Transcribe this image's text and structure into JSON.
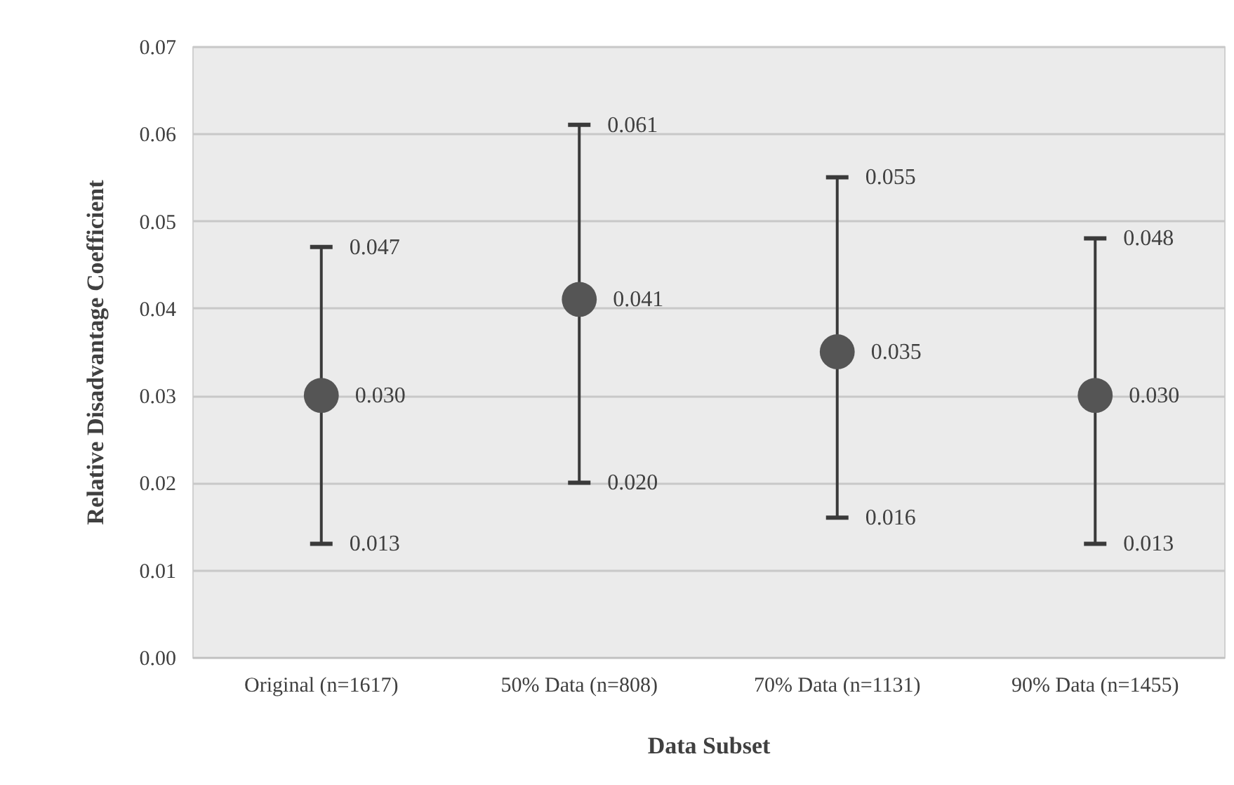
{
  "chart_data": {
    "type": "scatter",
    "xlabel": "Data Subset",
    "ylabel": "Relative Disadvantage Coefficient",
    "categories": [
      "Original (n=1617)",
      "50% Data (n=808)",
      "70% Data (n=1131)",
      "90% Data (n=1455)"
    ],
    "values": [
      0.03,
      0.041,
      0.035,
      0.03
    ],
    "value_labels": [
      "0.030",
      "0.041",
      "0.035",
      "0.030"
    ],
    "errors": [
      [
        0.013,
        0.047
      ],
      [
        0.02,
        0.061
      ],
      [
        0.016,
        0.055
      ],
      [
        0.013,
        0.048
      ]
    ],
    "color": "#555555",
    "marker": "circle",
    "grid": "y",
    "ylim": [
      0,
      0.07
    ],
    "yticks": [
      {
        "value": 0,
        "label": "0.00"
      },
      {
        "value": 0.01,
        "label": "0.01"
      },
      {
        "value": 0.02,
        "label": "0.02"
      },
      {
        "value": 0.03,
        "label": "0.03"
      },
      {
        "value": 0.04,
        "label": "0.04"
      },
      {
        "value": 0.05,
        "label": "0.05"
      },
      {
        "value": 0.06,
        "label": "0.06"
      },
      {
        "value": 0.07,
        "label": "0.07"
      }
    ],
    "annotations": [
      {
        "text": "0.047",
        "x": "Original (n=1617)",
        "y": 0.047
      },
      {
        "text": "0.013",
        "x": "Original (n=1617)",
        "y": 0.013
      },
      {
        "text": "0.061",
        "x": "50% Data (n=808)",
        "y": 0.061
      },
      {
        "text": "0.020",
        "x": "50% Data (n=808)",
        "y": 0.02
      },
      {
        "text": "0.055",
        "x": "70% Data (n=1131)",
        "y": 0.055
      },
      {
        "text": "0.016",
        "x": "70% Data (n=1131)",
        "y": 0.016
      },
      {
        "text": "0.048",
        "x": "90% Data (n=1455)",
        "y": 0.048
      },
      {
        "text": "0.013",
        "x": "90% Data (n=1455)",
        "y": 0.013
      }
    ]
  }
}
